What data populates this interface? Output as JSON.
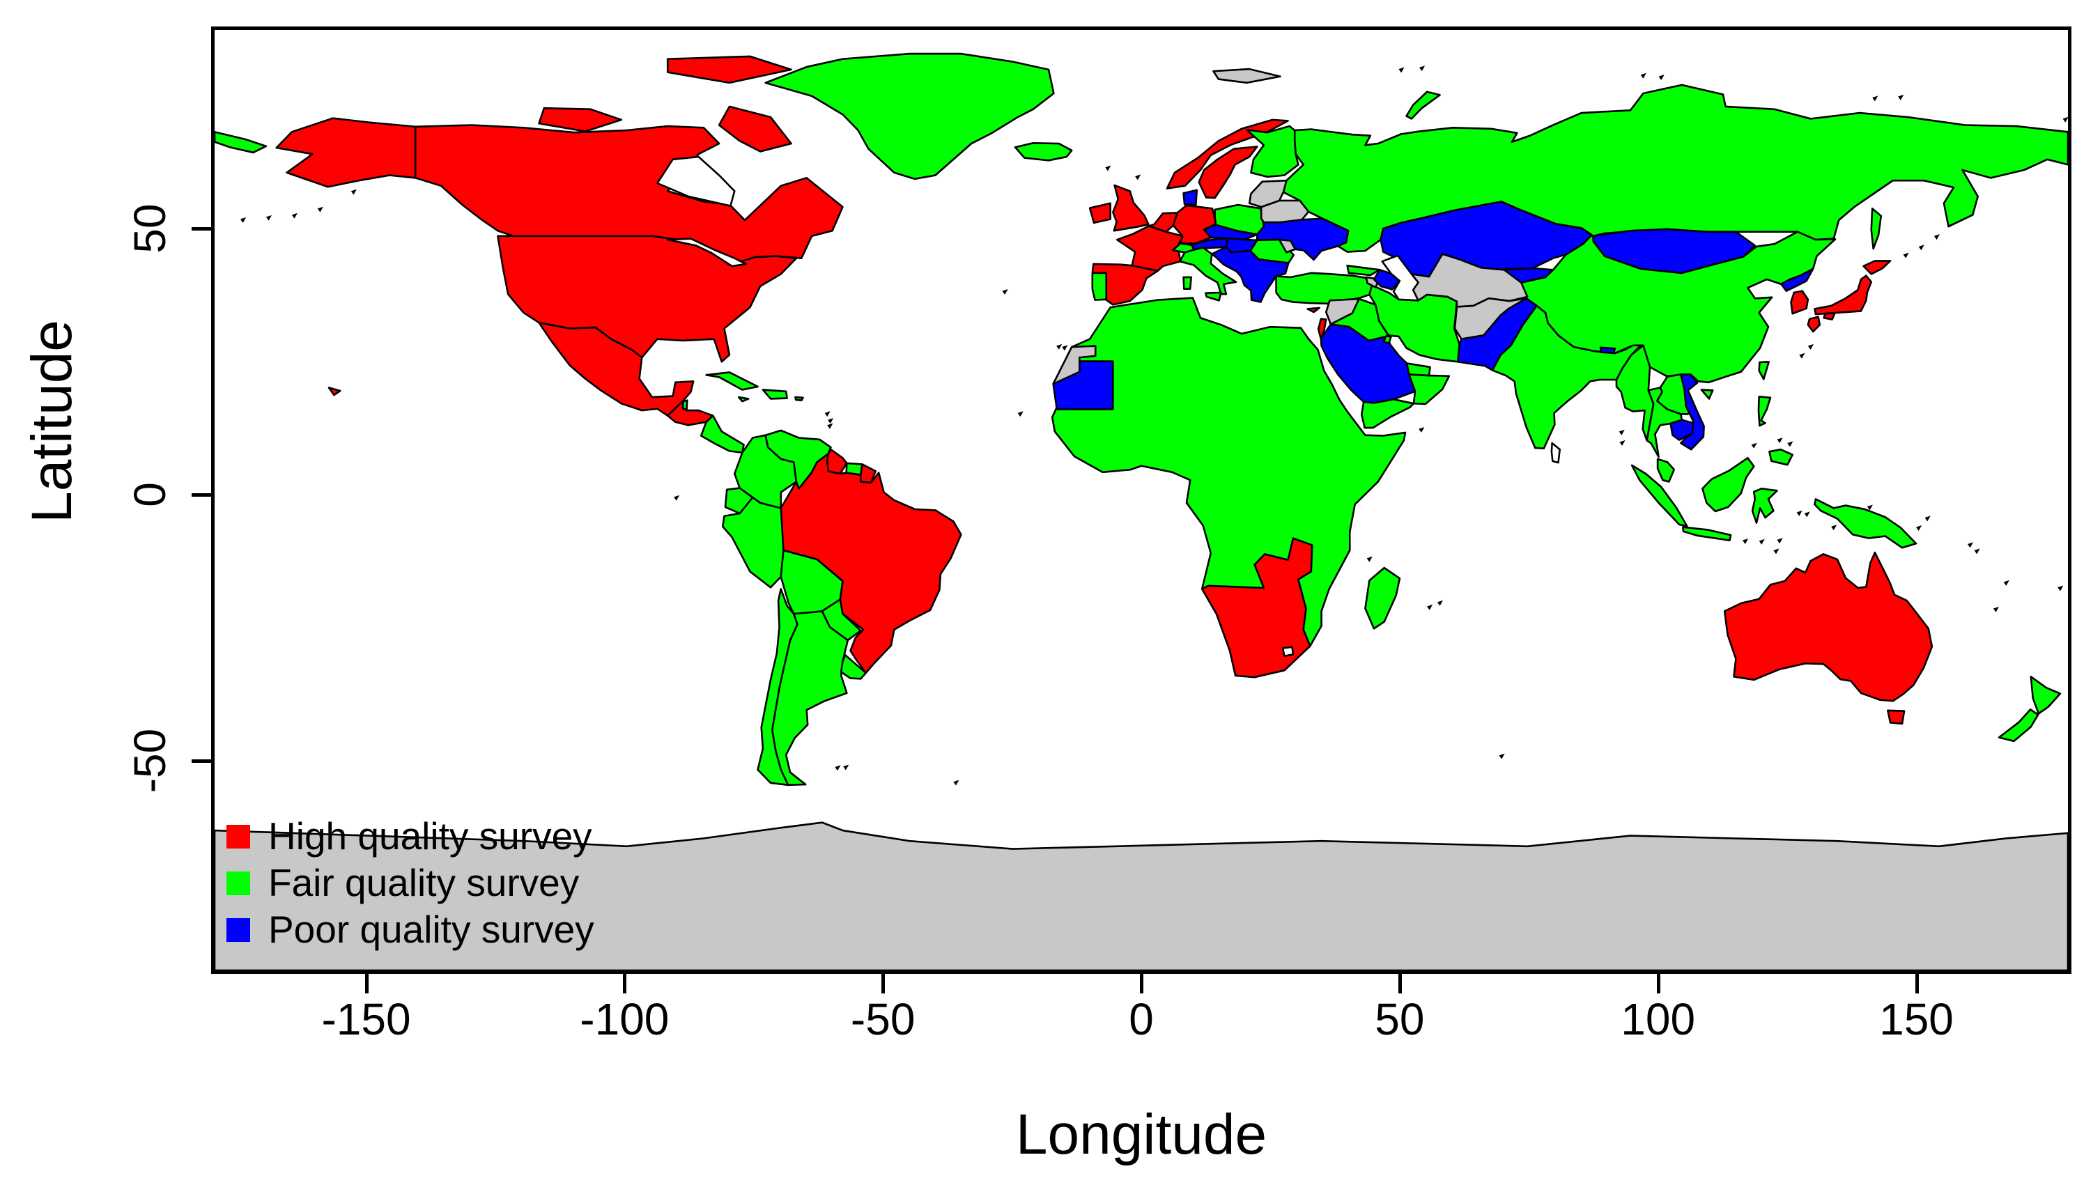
{
  "chart_data": {
    "type": "choropleth-map",
    "title": "",
    "xlabel": "Longitude",
    "ylabel": "Latitude",
    "xlim": [
      -180,
      180
    ],
    "ylim": [
      -90,
      88
    ],
    "xticks": [
      -150,
      -100,
      -50,
      0,
      50,
      100,
      150
    ],
    "yticks": [
      -50,
      0,
      50
    ],
    "grid": false,
    "legend_position": "bottom-left-inside",
    "legend": [
      {
        "key": "high",
        "label": "High quality survey",
        "color": "#FF0000"
      },
      {
        "key": "fair",
        "label": "Fair quality survey",
        "color": "#00FF00"
      },
      {
        "key": "poor",
        "label": "Poor quality survey",
        "color": "#0000FF"
      }
    ],
    "category_colors": {
      "high": "#FF0000",
      "fair": "#00FF00",
      "poor": "#0000FF",
      "none": "#C8C8C8",
      "water": "#FFFFFF",
      "speck": "#000000"
    },
    "border_color": "#000000",
    "ocean_color": "#FFFFFF",
    "countries": [
      {
        "name": "antarctica",
        "category": "none"
      },
      {
        "name": "russia",
        "category": "fair"
      },
      {
        "name": "canada",
        "category": "high"
      },
      {
        "name": "africa-main",
        "category": "fair"
      },
      {
        "name": "china",
        "category": "fair"
      },
      {
        "name": "usa",
        "category": "high"
      },
      {
        "name": "brazil",
        "category": "high"
      },
      {
        "name": "australia",
        "category": "high"
      },
      {
        "name": "greenland",
        "category": "fair"
      },
      {
        "name": "kazakhstan",
        "category": "poor"
      },
      {
        "name": "mongolia",
        "category": "poor"
      },
      {
        "name": "india",
        "category": "fair"
      },
      {
        "name": "argentina",
        "category": "fair"
      },
      {
        "name": "chile",
        "category": "fair"
      },
      {
        "name": "peru",
        "category": "fair"
      },
      {
        "name": "bolivia",
        "category": "fair"
      },
      {
        "name": "colombia",
        "category": "fair"
      },
      {
        "name": "venezuela",
        "category": "fair"
      },
      {
        "name": "mexico",
        "category": "high"
      },
      {
        "name": "iran",
        "category": "fair"
      },
      {
        "name": "saudi-arabia-jordan",
        "category": "poor"
      },
      {
        "name": "central-asia-stans",
        "category": "none"
      },
      {
        "name": "afghanistan",
        "category": "none"
      },
      {
        "name": "pakistan",
        "category": "poor"
      },
      {
        "name": "turkey",
        "category": "fair"
      },
      {
        "name": "ukraine",
        "category": "poor"
      },
      {
        "name": "southern-africa-cluster",
        "category": "high"
      },
      {
        "name": "mauritania",
        "category": "poor"
      },
      {
        "name": "western-sahara",
        "category": "none"
      },
      {
        "name": "madagascar",
        "category": "fair"
      },
      {
        "name": "norway",
        "category": "high"
      },
      {
        "name": "sweden",
        "category": "high"
      },
      {
        "name": "finland",
        "category": "fair"
      },
      {
        "name": "france",
        "category": "high"
      },
      {
        "name": "spain",
        "category": "high"
      },
      {
        "name": "portugal",
        "category": "fair"
      },
      {
        "name": "germany",
        "category": "high"
      },
      {
        "name": "benelux",
        "category": "high"
      },
      {
        "name": "poland",
        "category": "fair"
      },
      {
        "name": "czech-slovakia",
        "category": "poor"
      },
      {
        "name": "austria",
        "category": "poor"
      },
      {
        "name": "hungary",
        "category": "poor"
      },
      {
        "name": "balkans",
        "category": "poor"
      },
      {
        "name": "romania",
        "category": "fair"
      },
      {
        "name": "moldova",
        "category": "none"
      },
      {
        "name": "belarus",
        "category": "none"
      },
      {
        "name": "baltic-states",
        "category": "none"
      },
      {
        "name": "denmark",
        "category": "poor"
      },
      {
        "name": "great-britain",
        "category": "high"
      },
      {
        "name": "ireland",
        "category": "high"
      },
      {
        "name": "iceland",
        "category": "fair"
      },
      {
        "name": "italy",
        "category": "fair"
      },
      {
        "name": "sicily",
        "category": "fair"
      },
      {
        "name": "sardinia",
        "category": "fair"
      },
      {
        "name": "switzerland",
        "category": "fair"
      },
      {
        "name": "georgia",
        "category": "fair"
      },
      {
        "name": "armenia",
        "category": "none"
      },
      {
        "name": "azerbaijan",
        "category": "poor"
      },
      {
        "name": "syria",
        "category": "none"
      },
      {
        "name": "iraq",
        "category": "fair"
      },
      {
        "name": "israel",
        "category": "high"
      },
      {
        "name": "cyprus",
        "category": "high"
      },
      {
        "name": "kuwait",
        "category": "fair"
      },
      {
        "name": "yemen",
        "category": "fair"
      },
      {
        "name": "oman",
        "category": "fair"
      },
      {
        "name": "uae",
        "category": "fair"
      },
      {
        "name": "myanmar",
        "category": "fair"
      },
      {
        "name": "thailand",
        "category": "fair"
      },
      {
        "name": "laos",
        "category": "fair"
      },
      {
        "name": "vietnam",
        "category": "poor"
      },
      {
        "name": "cambodia",
        "category": "poor"
      },
      {
        "name": "malaysia-peninsula",
        "category": "fair"
      },
      {
        "name": "sumatra",
        "category": "fair"
      },
      {
        "name": "java",
        "category": "fair"
      },
      {
        "name": "borneo",
        "category": "fair"
      },
      {
        "name": "sulawesi",
        "category": "fair"
      },
      {
        "name": "new-guinea",
        "category": "fair"
      },
      {
        "name": "luzon",
        "category": "fair"
      },
      {
        "name": "mindanao",
        "category": "fair"
      },
      {
        "name": "taiwan",
        "category": "fair"
      },
      {
        "name": "hainan",
        "category": "fair"
      },
      {
        "name": "north-korea",
        "category": "poor"
      },
      {
        "name": "south-korea",
        "category": "high"
      },
      {
        "name": "japan-hokkaido",
        "category": "high"
      },
      {
        "name": "japan-honshu",
        "category": "high"
      },
      {
        "name": "japan-kyushu",
        "category": "high"
      },
      {
        "name": "japan-shikoku",
        "category": "high"
      },
      {
        "name": "sakhalin",
        "category": "fair"
      },
      {
        "name": "kyrgyzstan",
        "category": "poor"
      },
      {
        "name": "bhutan",
        "category": "poor"
      },
      {
        "name": "sri-lanka",
        "category": "water"
      },
      {
        "name": "tasmania",
        "category": "high"
      },
      {
        "name": "new-zealand-north",
        "category": "fair"
      },
      {
        "name": "new-zealand-south",
        "category": "fair"
      },
      {
        "name": "alaska",
        "category": "high"
      },
      {
        "name": "chukotka-west",
        "category": "fair"
      },
      {
        "name": "baffin-island",
        "category": "high"
      },
      {
        "name": "victoria-island",
        "category": "high"
      },
      {
        "name": "ellesmere-island",
        "category": "high"
      },
      {
        "name": "svalbard",
        "category": "none"
      },
      {
        "name": "novaya-zemlya",
        "category": "fair"
      },
      {
        "name": "guatemala-honduras",
        "category": "high"
      },
      {
        "name": "belize",
        "category": "fair"
      },
      {
        "name": "nicaragua-costarica-panama",
        "category": "fair"
      },
      {
        "name": "cuba",
        "category": "fair"
      },
      {
        "name": "hispaniola",
        "category": "fair"
      },
      {
        "name": "jamaica",
        "category": "fair"
      },
      {
        "name": "puerto-rico",
        "category": "fair"
      },
      {
        "name": "guyana",
        "category": "high"
      },
      {
        "name": "suriname",
        "category": "fair"
      },
      {
        "name": "french-guiana",
        "category": "high"
      },
      {
        "name": "ecuador",
        "category": "fair"
      },
      {
        "name": "paraguay",
        "category": "fair"
      },
      {
        "name": "uruguay",
        "category": "fair"
      },
      {
        "name": "hawaii",
        "category": "high"
      },
      {
        "name": "hudson-bay",
        "category": "water"
      },
      {
        "name": "great-lakes",
        "category": "water"
      },
      {
        "name": "caspian-sea",
        "category": "water"
      },
      {
        "name": "lesotho",
        "category": "water"
      },
      {
        "name": "island-specks",
        "category": "speck"
      }
    ]
  }
}
